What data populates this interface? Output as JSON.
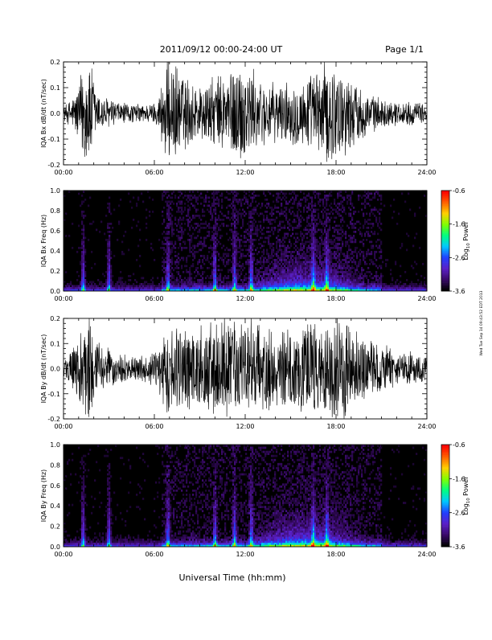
{
  "header": {
    "title": "2011/09/12  00:00-24:00 UT",
    "page": "Page 1/1"
  },
  "footer": {
    "xlabel": "Universal Time (hh:mm)",
    "stamp": "Wed Tue Sep 14 09:43:52 EDT 2013"
  },
  "colorbar": {
    "label": "Log10 Power",
    "label_main": "Log",
    "label_sub": "10",
    "label_tail": " Power",
    "ticks": [
      -0.6,
      -1.6,
      -2.6,
      -3.6
    ],
    "tick_labels": [
      "-0.6",
      "-1.6",
      "-2.6",
      "-3.6"
    ],
    "colors": [
      "#000000",
      "#3a0a6a",
      "#5a20c8",
      "#2040ff",
      "#00c8ff",
      "#00ff80",
      "#80ff00",
      "#ffd000",
      "#ff6000",
      "#ff0000"
    ]
  },
  "chart_data": [
    {
      "type": "line",
      "name": "bx-waveform",
      "ylabel": "IQA Bx dB/dt (nT/sec)",
      "ylim": [
        -0.2,
        0.2
      ],
      "yticks": [
        -0.2,
        -0.1,
        0.0,
        0.1,
        0.2
      ],
      "ytick_labels": [
        "-0.2",
        "-0.1",
        "0.0",
        "0.1",
        "0.2"
      ],
      "xlim": [
        0,
        24
      ],
      "xticks": [
        0,
        6,
        12,
        18,
        24
      ],
      "xtick_labels": [
        "00:00",
        "06:00",
        "12:00",
        "18:00",
        "24:00"
      ],
      "envelope": {
        "x": [
          0,
          0.5,
          1.0,
          1.3,
          1.8,
          2.2,
          2.8,
          3.5,
          4.5,
          5.5,
          6.2,
          6.7,
          7.0,
          7.5,
          8.0,
          9.0,
          10.0,
          11.0,
          11.5,
          12.0,
          13.0,
          14.0,
          15.0,
          16.0,
          16.5,
          17.0,
          17.5,
          18.0,
          19.0,
          20.0,
          21.0,
          22.0,
          23.0,
          24.0
        ],
        "amplitude": [
          0.03,
          0.06,
          0.12,
          0.22,
          0.22,
          0.09,
          0.07,
          0.05,
          0.04,
          0.04,
          0.05,
          0.2,
          0.22,
          0.2,
          0.16,
          0.12,
          0.15,
          0.19,
          0.22,
          0.22,
          0.14,
          0.12,
          0.13,
          0.15,
          0.17,
          0.2,
          0.22,
          0.2,
          0.15,
          0.09,
          0.06,
          0.05,
          0.05,
          0.04
        ]
      }
    },
    {
      "type": "heatmap",
      "name": "bx-spectrogram",
      "ylabel": "IQA Bx Freq (Hz)",
      "ylim": [
        0.0,
        1.0
      ],
      "yticks": [
        0.0,
        0.2,
        0.4,
        0.6,
        0.8,
        1.0
      ],
      "ytick_labels": [
        "0.0",
        "0.2",
        "0.4",
        "0.6",
        "0.8",
        "1.0"
      ],
      "xlim": [
        0,
        24
      ],
      "xticks": [
        0,
        6,
        12,
        18,
        24
      ],
      "xtick_labels": [
        "00:00",
        "06:00",
        "12:00",
        "18:00",
        "24:00"
      ],
      "zlim": [
        -3.6,
        -0.6
      ],
      "bursts_ut": [
        1.3,
        3.0,
        6.9,
        10.0,
        11.3,
        12.4,
        16.5,
        17.4
      ],
      "broadband_ut": [
        12.0,
        20.0
      ]
    },
    {
      "type": "line",
      "name": "by-waveform",
      "ylabel": "IQA By dB/dt (nT/sec)",
      "ylim": [
        -0.2,
        0.2
      ],
      "yticks": [
        -0.2,
        -0.1,
        0.0,
        0.1,
        0.2
      ],
      "ytick_labels": [
        "-0.2",
        "-0.1",
        "0.0",
        "0.1",
        "0.2"
      ],
      "xlim": [
        0,
        24
      ],
      "xticks": [
        0,
        6,
        12,
        18,
        24
      ],
      "xtick_labels": [
        "00:00",
        "06:00",
        "12:00",
        "18:00",
        "24:00"
      ],
      "envelope": {
        "x": [
          0,
          0.5,
          1.0,
          1.3,
          1.8,
          2.2,
          2.8,
          3.5,
          4.5,
          5.5,
          6.2,
          6.7,
          7.0,
          7.5,
          8.0,
          9.0,
          10.0,
          11.0,
          11.5,
          12.0,
          13.0,
          14.0,
          15.0,
          16.0,
          16.5,
          17.0,
          17.5,
          18.0,
          19.0,
          20.0,
          21.0,
          22.0,
          23.0,
          24.0
        ],
        "amplitude": [
          0.04,
          0.08,
          0.15,
          0.22,
          0.22,
          0.12,
          0.1,
          0.07,
          0.05,
          0.06,
          0.08,
          0.22,
          0.22,
          0.22,
          0.2,
          0.18,
          0.2,
          0.22,
          0.22,
          0.22,
          0.19,
          0.17,
          0.18,
          0.2,
          0.22,
          0.22,
          0.22,
          0.22,
          0.19,
          0.13,
          0.1,
          0.08,
          0.07,
          0.06
        ]
      }
    },
    {
      "type": "heatmap",
      "name": "by-spectrogram",
      "ylabel": "IQA By Freq (Hz)",
      "ylim": [
        0.0,
        1.0
      ],
      "yticks": [
        0.0,
        0.2,
        0.4,
        0.6,
        0.8,
        1.0
      ],
      "ytick_labels": [
        "0.0",
        "0.2",
        "0.4",
        "0.6",
        "0.8",
        "1.0"
      ],
      "xlim": [
        0,
        24
      ],
      "xticks": [
        0,
        6,
        12,
        18,
        24
      ],
      "xtick_labels": [
        "00:00",
        "06:00",
        "12:00",
        "18:00",
        "24:00"
      ],
      "zlim": [
        -3.6,
        -0.6
      ],
      "bursts_ut": [
        1.3,
        3.0,
        6.9,
        10.0,
        11.3,
        12.4,
        16.5,
        17.4
      ],
      "broadband_ut": [
        12.0,
        20.0
      ]
    }
  ]
}
